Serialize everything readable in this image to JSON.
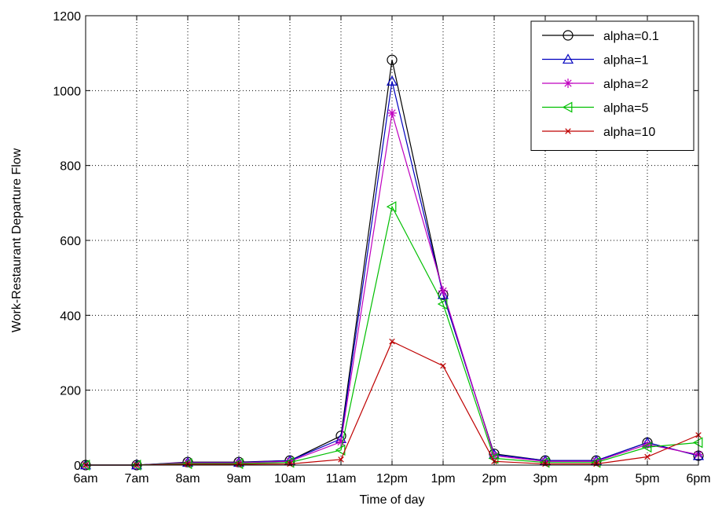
{
  "chart_data": {
    "type": "line",
    "title": "",
    "xlabel": "Time of day",
    "ylabel": "Work-Restaurant Departure Flow",
    "categories": [
      "6am",
      "7am",
      "8am",
      "9am",
      "10am",
      "11am",
      "12pm",
      "1pm",
      "2pm",
      "3pm",
      "4pm",
      "5pm",
      "6pm"
    ],
    "ylim": [
      0,
      1200
    ],
    "yticks": [
      0,
      200,
      400,
      600,
      800,
      1000,
      1200
    ],
    "grid": true,
    "legend_position": "top-right",
    "series": [
      {
        "name": "alpha=0.1",
        "color": "#000000",
        "marker": "circle",
        "values": [
          0,
          0,
          8,
          8,
          12,
          78,
          1082,
          455,
          30,
          12,
          12,
          60,
          25
        ]
      },
      {
        "name": "alpha=1",
        "color": "#0000bf",
        "marker": "triangle-up",
        "values": [
          0,
          0,
          7,
          7,
          12,
          70,
          1025,
          455,
          28,
          12,
          12,
          60,
          25
        ]
      },
      {
        "name": "alpha=2",
        "color": "#bf00bf",
        "marker": "asterisk",
        "values": [
          0,
          0,
          6,
          6,
          10,
          62,
          940,
          465,
          25,
          10,
          10,
          55,
          28
        ]
      },
      {
        "name": "alpha=5",
        "color": "#00bf00",
        "marker": "triangle-left",
        "values": [
          0,
          0,
          4,
          4,
          7,
          40,
          690,
          430,
          18,
          7,
          7,
          48,
          60
        ]
      },
      {
        "name": "alpha=10",
        "color": "#bf0000",
        "marker": "x",
        "values": [
          0,
          0,
          2,
          2,
          3,
          15,
          330,
          265,
          10,
          3,
          3,
          22,
          80
        ]
      }
    ]
  }
}
